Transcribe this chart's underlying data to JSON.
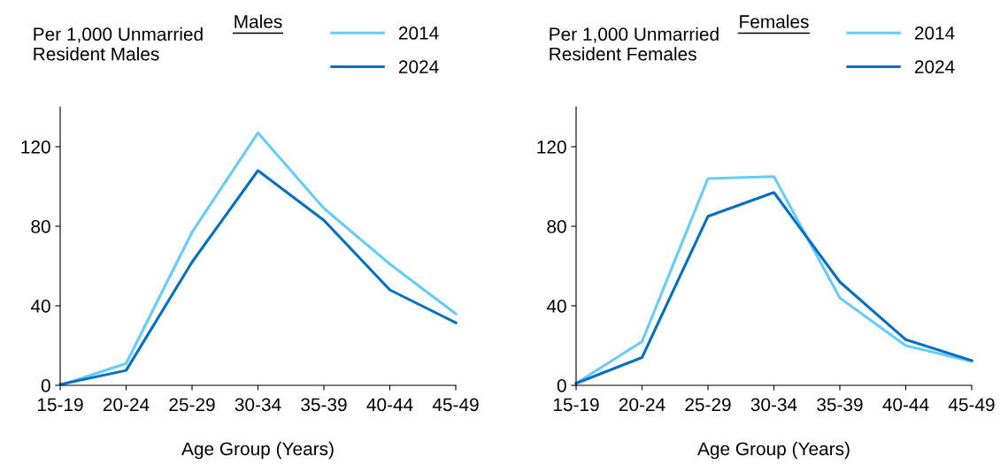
{
  "chart_data": [
    {
      "type": "line",
      "title": "Males",
      "ylabel": "Per 1,000 Unmarried\nResident Males",
      "xlabel": "Age Group (Years)",
      "categories": [
        "15-19",
        "20-24",
        "25-29",
        "30-34",
        "35-39",
        "40-44",
        "45-49"
      ],
      "series": [
        {
          "name": "2014",
          "color": "#66ccff",
          "values": [
            0,
            11,
            77,
            127,
            89,
            61,
            36
          ]
        },
        {
          "name": "2024",
          "color": "#0070c0",
          "values": [
            0.5,
            7.5,
            62,
            108,
            83,
            48,
            31.5
          ]
        }
      ],
      "ylim": [
        0,
        140
      ],
      "yticks": [
        0,
        40,
        80,
        120
      ],
      "legend": "top right",
      "grid": false,
      "marker": "none",
      "line_style": "solid"
    },
    {
      "type": "line",
      "title": "Females",
      "ylabel": "Per 1,000 Unmarried\nResident Females",
      "xlabel": "Age Group (Years)",
      "categories": [
        "15-19",
        "20-24",
        "25-29",
        "30-34",
        "35-39",
        "40-44",
        "45-49"
      ],
      "series": [
        {
          "name": "2014",
          "color": "#66ccff",
          "values": [
            1,
            22,
            104,
            105,
            44,
            20,
            12
          ]
        },
        {
          "name": "2024",
          "color": "#0070c0",
          "values": [
            1,
            14,
            85,
            97,
            52,
            23,
            12.5
          ]
        }
      ],
      "ylim": [
        0,
        140
      ],
      "yticks": [
        0,
        40,
        80,
        120
      ],
      "legend": "top right",
      "grid": false,
      "marker": "none",
      "line_style": "solid"
    }
  ]
}
